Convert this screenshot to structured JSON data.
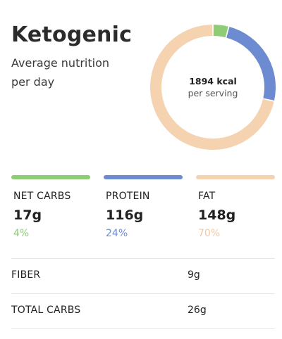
{
  "header": {
    "title": "Ketogenic",
    "subtitle": "Average nutrition per day"
  },
  "summary": {
    "calories": "1894 kcal",
    "calories_note": "per serving"
  },
  "colors": {
    "carbs": "#8fcc76",
    "protein": "#6d8bd0",
    "fat": "#f5d2b0"
  },
  "chart_data": {
    "type": "pie",
    "categories": [
      "NET CARBS",
      "PROTEIN",
      "FAT"
    ],
    "values": [
      4,
      24,
      70
    ],
    "colors": [
      "#8fcc76",
      "#6d8bd0",
      "#f5d2b0"
    ]
  },
  "macros": [
    {
      "label": "NET CARBS",
      "amount": "17g",
      "percent": "4%"
    },
    {
      "label": "PROTEIN",
      "amount": "116g",
      "percent": "24%"
    },
    {
      "label": "FAT",
      "amount": "148g",
      "percent": "70%"
    }
  ],
  "details": [
    {
      "label": "FIBER",
      "value": "9g"
    },
    {
      "label": "TOTAL CARBS",
      "value": "26g"
    }
  ]
}
